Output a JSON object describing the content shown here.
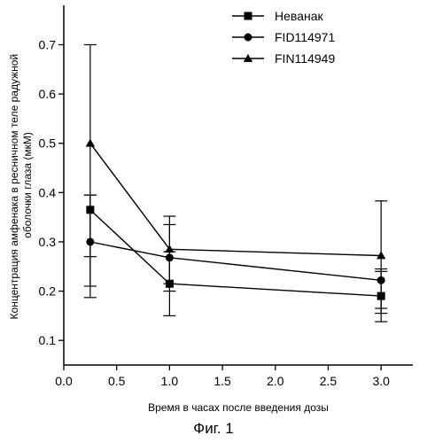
{
  "chart_data": {
    "type": "line",
    "xlabel": "Время в часах после введения дозы",
    "ylabel_lines": [
      "Концентрация амфенака в ресничном теле радужной",
      "оболочки глаза (мкМ)"
    ],
    "xlim": [
      0.0,
      3.3
    ],
    "ylim": [
      0.05,
      0.78
    ],
    "x_ticks": [
      "0.0",
      "0.5",
      "1.0",
      "1.5",
      "2.0",
      "2.5",
      "3.0"
    ],
    "x_tick_values": [
      0.0,
      0.5,
      1.0,
      1.5,
      2.0,
      2.5,
      3.0
    ],
    "y_ticks": [
      "0.1",
      "0.2",
      "0.3",
      "0.4",
      "0.5",
      "0.6",
      "0.7"
    ],
    "y_tick_values": [
      0.1,
      0.2,
      0.3,
      0.4,
      0.5,
      0.6,
      0.7
    ],
    "grid": false,
    "legend_position": "top-right",
    "series": [
      {
        "name": "Неванак",
        "marker": "square",
        "x": [
          0.25,
          1.0,
          3.0
        ],
        "y": [
          0.365,
          0.215,
          0.19
        ],
        "err_low": [
          0.27,
          0.15,
          0.138
        ],
        "err_high": [
          0.395,
          0.28,
          0.24
        ]
      },
      {
        "name": "FID114971",
        "marker": "circle",
        "x": [
          0.25,
          1.0,
          3.0
        ],
        "y": [
          0.3,
          0.268,
          0.222
        ],
        "err_low": [
          0.21,
          0.2,
          0.165
        ],
        "err_high": [
          0.395,
          0.335,
          0.245
        ]
      },
      {
        "name": "FIN114949",
        "marker": "triangle",
        "x": [
          0.25,
          1.0,
          3.0
        ],
        "y": [
          0.5,
          0.285,
          0.272
        ],
        "err_low": [
          0.187,
          0.215,
          0.155
        ],
        "err_high": [
          0.7,
          0.352,
          0.383
        ]
      }
    ]
  },
  "caption": "Фиг. 1"
}
